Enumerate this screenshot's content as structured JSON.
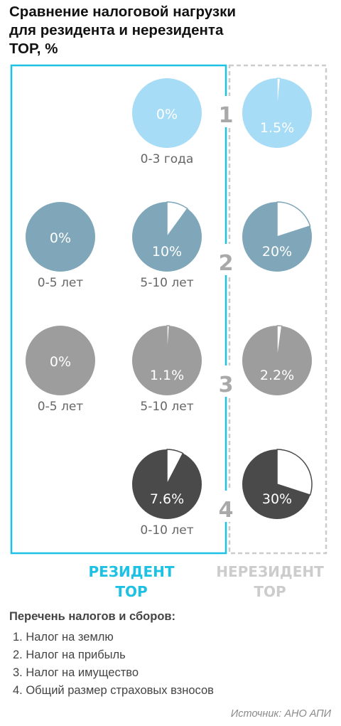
{
  "title": "Сравнение налоговой нагрузки\nдля резидента и нерезидента\nТОР, %",
  "colors": {
    "resident_frame": "#1cc1e3",
    "nonresident_frame": "#cccccc",
    "tax_colors": [
      "#a7dcf6",
      "#7fa7b9",
      "#9d9d9d",
      "#4a4a4a"
    ],
    "row_number": "#a9a9a9",
    "caption": "#666666"
  },
  "columns": {
    "resident": "РЕЗИДЕНТ\nТОР",
    "nonresident": "НЕРЕЗИДЕНТ\nТОР"
  },
  "chart_data": {
    "type": "pie",
    "rows": [
      {
        "number": "1",
        "tax": "Налог на землю",
        "resident": [
          {
            "value": 0,
            "label": "0%",
            "period": "0-3 года"
          }
        ],
        "nonresident": {
          "value": 1.5,
          "label": "1.5%"
        }
      },
      {
        "number": "2",
        "tax": "Налог на прибыль",
        "resident": [
          {
            "value": 0,
            "label": "0%",
            "period": "0-5 лет"
          },
          {
            "value": 10,
            "label": "10%",
            "period": "5-10 лет"
          }
        ],
        "nonresident": {
          "value": 20,
          "label": "20%"
        }
      },
      {
        "number": "3",
        "tax": "Налог на имущество",
        "resident": [
          {
            "value": 0,
            "label": "0%",
            "period": "0-5 лет"
          },
          {
            "value": 1.1,
            "label": "1.1%",
            "period": "5-10 лет"
          }
        ],
        "nonresident": {
          "value": 2.2,
          "label": "2.2%"
        }
      },
      {
        "number": "4",
        "tax": "Общий размер страховых взносов",
        "resident": [
          {
            "value": 7.6,
            "label": "7.6%",
            "period": "0-10 лет"
          }
        ],
        "nonresident": {
          "value": 30,
          "label": "30%"
        }
      }
    ]
  },
  "legend": {
    "title": "Перечень налогов и сборов:",
    "items": [
      "1.  Налог на землю",
      "2.  Налог на прибыль",
      "3.  Налог на имущество",
      "4.  Общий размер страховых взносов"
    ]
  },
  "source": "Источник: АНО АПИ"
}
